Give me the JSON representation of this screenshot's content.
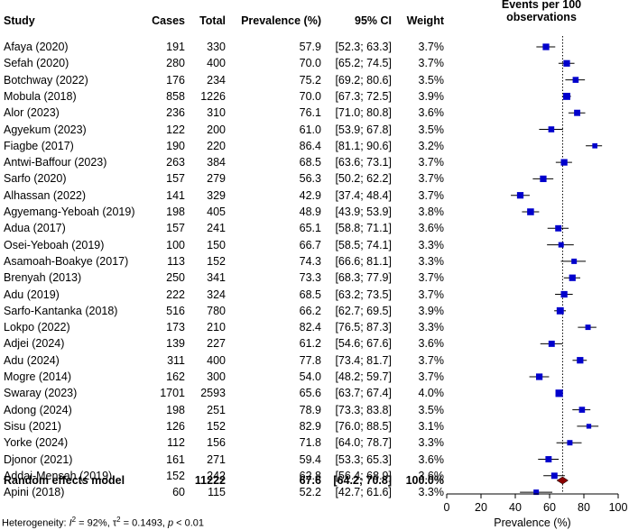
{
  "headers": {
    "study": "Study",
    "cases": "Cases",
    "total": "Total",
    "prevalence": "Prevalence (%)",
    "ci": "95% CI",
    "weight": "Weight",
    "plot_title_line1": "Events per 100",
    "plot_title_line2": "observations"
  },
  "footer": {
    "heterogeneity_label": "Heterogeneity:",
    "i2": "92%",
    "tau2": "0.1493",
    "p": "< 0.01"
  },
  "chart_data": {
    "type": "forest",
    "xlabel": "Prevalence (%)",
    "xlim": [
      0,
      100
    ],
    "ticks": [
      0,
      20,
      40,
      60,
      80,
      100
    ],
    "reference_line": 67.6,
    "marker_color": "#0000cc",
    "summary_color": "#8b0000",
    "studies": [
      {
        "study": "Afaya (2020)",
        "cases": "191",
        "total": "330",
        "prev": 57.9,
        "lo": 52.3,
        "hi": 63.3,
        "ci": "[52.3; 63.3]",
        "weight": "3.7%"
      },
      {
        "study": "Sefah (2020)",
        "cases": "280",
        "total": "400",
        "prev": 70.0,
        "lo": 65.2,
        "hi": 74.5,
        "ci": "[65.2; 74.5]",
        "weight": "3.7%"
      },
      {
        "study": "Botchway (2022)",
        "cases": "176",
        "total": "234",
        "prev": 75.2,
        "lo": 69.2,
        "hi": 80.6,
        "ci": "[69.2; 80.6]",
        "weight": "3.5%"
      },
      {
        "study": "Mobula (2018)",
        "cases": "858",
        "total": "1226",
        "prev": 70.0,
        "lo": 67.3,
        "hi": 72.5,
        "ci": "[67.3; 72.5]",
        "weight": "3.9%"
      },
      {
        "study": "Alor (2023)",
        "cases": "236",
        "total": "310",
        "prev": 76.1,
        "lo": 71.0,
        "hi": 80.8,
        "ci": "[71.0; 80.8]",
        "weight": "3.6%"
      },
      {
        "study": "Agyekum (2023)",
        "cases": "122",
        "total": "200",
        "prev": 61.0,
        "lo": 53.9,
        "hi": 67.8,
        "ci": "[53.9; 67.8]",
        "weight": "3.5%"
      },
      {
        "study": "Fiagbe (2017)",
        "cases": "190",
        "total": "220",
        "prev": 86.4,
        "lo": 81.1,
        "hi": 90.6,
        "ci": "[81.1; 90.6]",
        "weight": "3.2%"
      },
      {
        "study": "Antwi-Baffour (2023)",
        "cases": "263",
        "total": "384",
        "prev": 68.5,
        "lo": 63.6,
        "hi": 73.1,
        "ci": "[63.6; 73.1]",
        "weight": "3.7%"
      },
      {
        "study": "Sarfo (2020)",
        "cases": "157",
        "total": "279",
        "prev": 56.3,
        "lo": 50.2,
        "hi": 62.2,
        "ci": "[50.2; 62.2]",
        "weight": "3.7%"
      },
      {
        "study": "Alhassan (2022)",
        "cases": "141",
        "total": "329",
        "prev": 42.9,
        "lo": 37.4,
        "hi": 48.4,
        "ci": "[37.4; 48.4]",
        "weight": "3.7%"
      },
      {
        "study": "Agyemang-Yeboah (2019)",
        "cases": "198",
        "total": "405",
        "prev": 48.9,
        "lo": 43.9,
        "hi": 53.9,
        "ci": "[43.9; 53.9]",
        "weight": "3.8%"
      },
      {
        "study": "Adua (2017)",
        "cases": "157",
        "total": "241",
        "prev": 65.1,
        "lo": 58.8,
        "hi": 71.1,
        "ci": "[58.8; 71.1]",
        "weight": "3.6%"
      },
      {
        "study": "Osei-Yeboah (2019)",
        "cases": "100",
        "total": "150",
        "prev": 66.7,
        "lo": 58.5,
        "hi": 74.1,
        "ci": "[58.5; 74.1]",
        "weight": "3.3%"
      },
      {
        "study": "Asamoah-Boakye (2017)",
        "cases": "113",
        "total": "152",
        "prev": 74.3,
        "lo": 66.6,
        "hi": 81.1,
        "ci": "[66.6; 81.1]",
        "weight": "3.3%"
      },
      {
        "study": "Brenyah (2013)",
        "cases": "250",
        "total": "341",
        "prev": 73.3,
        "lo": 68.3,
        "hi": 77.9,
        "ci": "[68.3; 77.9]",
        "weight": "3.7%"
      },
      {
        "study": "Adu (2019)",
        "cases": "222",
        "total": "324",
        "prev": 68.5,
        "lo": 63.2,
        "hi": 73.5,
        "ci": "[63.2; 73.5]",
        "weight": "3.7%"
      },
      {
        "study": "Sarfo-Kantanka (2018)",
        "cases": "516",
        "total": "780",
        "prev": 66.2,
        "lo": 62.7,
        "hi": 69.5,
        "ci": "[62.7; 69.5]",
        "weight": "3.9%"
      },
      {
        "study": "Lokpo (2022)",
        "cases": "173",
        "total": "210",
        "prev": 82.4,
        "lo": 76.5,
        "hi": 87.3,
        "ci": "[76.5; 87.3]",
        "weight": "3.3%"
      },
      {
        "study": "Adjei (2024)",
        "cases": "139",
        "total": "227",
        "prev": 61.2,
        "lo": 54.6,
        "hi": 67.6,
        "ci": "[54.6; 67.6]",
        "weight": "3.6%"
      },
      {
        "study": "Adu (2024)",
        "cases": "311",
        "total": "400",
        "prev": 77.8,
        "lo": 73.4,
        "hi": 81.7,
        "ci": "[73.4; 81.7]",
        "weight": "3.7%"
      },
      {
        "study": "Mogre (2014)",
        "cases": "162",
        "total": "300",
        "prev": 54.0,
        "lo": 48.2,
        "hi": 59.7,
        "ci": "[48.2; 59.7]",
        "weight": "3.7%"
      },
      {
        "study": "Swaray (2023)",
        "cases": "1701",
        "total": "2593",
        "prev": 65.6,
        "lo": 63.7,
        "hi": 67.4,
        "ci": "[63.7; 67.4]",
        "weight": "4.0%"
      },
      {
        "study": "Adong (2024)",
        "cases": "198",
        "total": "251",
        "prev": 78.9,
        "lo": 73.3,
        "hi": 83.8,
        "ci": "[73.3; 83.8]",
        "weight": "3.5%"
      },
      {
        "study": "Sisu (2021)",
        "cases": "126",
        "total": "152",
        "prev": 82.9,
        "lo": 76.0,
        "hi": 88.5,
        "ci": "[76.0; 88.5]",
        "weight": "3.1%"
      },
      {
        "study": "Yorke (2024)",
        "cases": "112",
        "total": "156",
        "prev": 71.8,
        "lo": 64.0,
        "hi": 78.7,
        "ci": "[64.0; 78.7]",
        "weight": "3.3%"
      },
      {
        "study": "Djonor (2021)",
        "cases": "161",
        "total": "271",
        "prev": 59.4,
        "lo": 53.3,
        "hi": 65.3,
        "ci": "[53.3; 65.3]",
        "weight": "3.6%"
      },
      {
        "study": "Addai-Mensah (2019)",
        "cases": "152",
        "total": "242",
        "prev": 62.8,
        "lo": 56.4,
        "hi": 68.9,
        "ci": "[56.4; 68.9]",
        "weight": "3.6%"
      },
      {
        "study": "Apini (2018)",
        "cases": "60",
        "total": "115",
        "prev": 52.2,
        "lo": 42.7,
        "hi": 61.6,
        "ci": "[42.7; 61.6]",
        "weight": "3.3%"
      }
    ],
    "summary": {
      "study": "Random effects model",
      "cases": "",
      "total": "11222",
      "prev": 67.6,
      "lo": 64.2,
      "hi": 70.8,
      "ci": "[64.2; 70.8]",
      "weight": "100.0%"
    }
  }
}
